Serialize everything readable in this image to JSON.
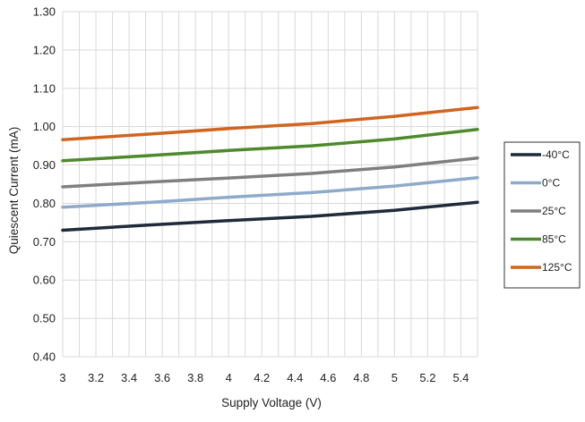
{
  "chart_data": {
    "type": "line",
    "title": "",
    "xlabel": "Supply Voltage (V)",
    "ylabel": "Quiescent Current (mA)",
    "xlim": [
      3,
      5.5
    ],
    "ylim": [
      0.4,
      1.3
    ],
    "grid": true,
    "legend_position": "right",
    "x_ticks": [
      "3",
      "3.2",
      "3.4",
      "3.6",
      "3.8",
      "4",
      "4.2",
      "4.4",
      "4.6",
      "4.8",
      "5",
      "5.2",
      "5.4"
    ],
    "y_ticks": [
      "0.40",
      "0.50",
      "0.60",
      "0.70",
      "0.80",
      "0.90",
      "1.00",
      "1.10",
      "1.20",
      "1.30"
    ],
    "x": [
      3.0,
      3.5,
      4.0,
      4.5,
      5.0,
      5.5
    ],
    "series": [
      {
        "name": "-40°C",
        "color": "#1f2a3a",
        "values": [
          0.73,
          0.743,
          0.755,
          0.766,
          0.782,
          0.803
        ]
      },
      {
        "name": "0°C",
        "color": "#8eaacb",
        "values": [
          0.79,
          0.802,
          0.816,
          0.828,
          0.845,
          0.867
        ]
      },
      {
        "name": "25°C",
        "color": "#7f7f7f",
        "values": [
          0.843,
          0.855,
          0.866,
          0.878,
          0.895,
          0.918
        ]
      },
      {
        "name": "85°C",
        "color": "#4e8a2b",
        "values": [
          0.911,
          0.924,
          0.938,
          0.95,
          0.968,
          0.993
        ]
      },
      {
        "name": "125°C",
        "color": "#d0651f",
        "values": [
          0.966,
          0.98,
          0.995,
          1.008,
          1.027,
          1.05
        ]
      }
    ]
  }
}
